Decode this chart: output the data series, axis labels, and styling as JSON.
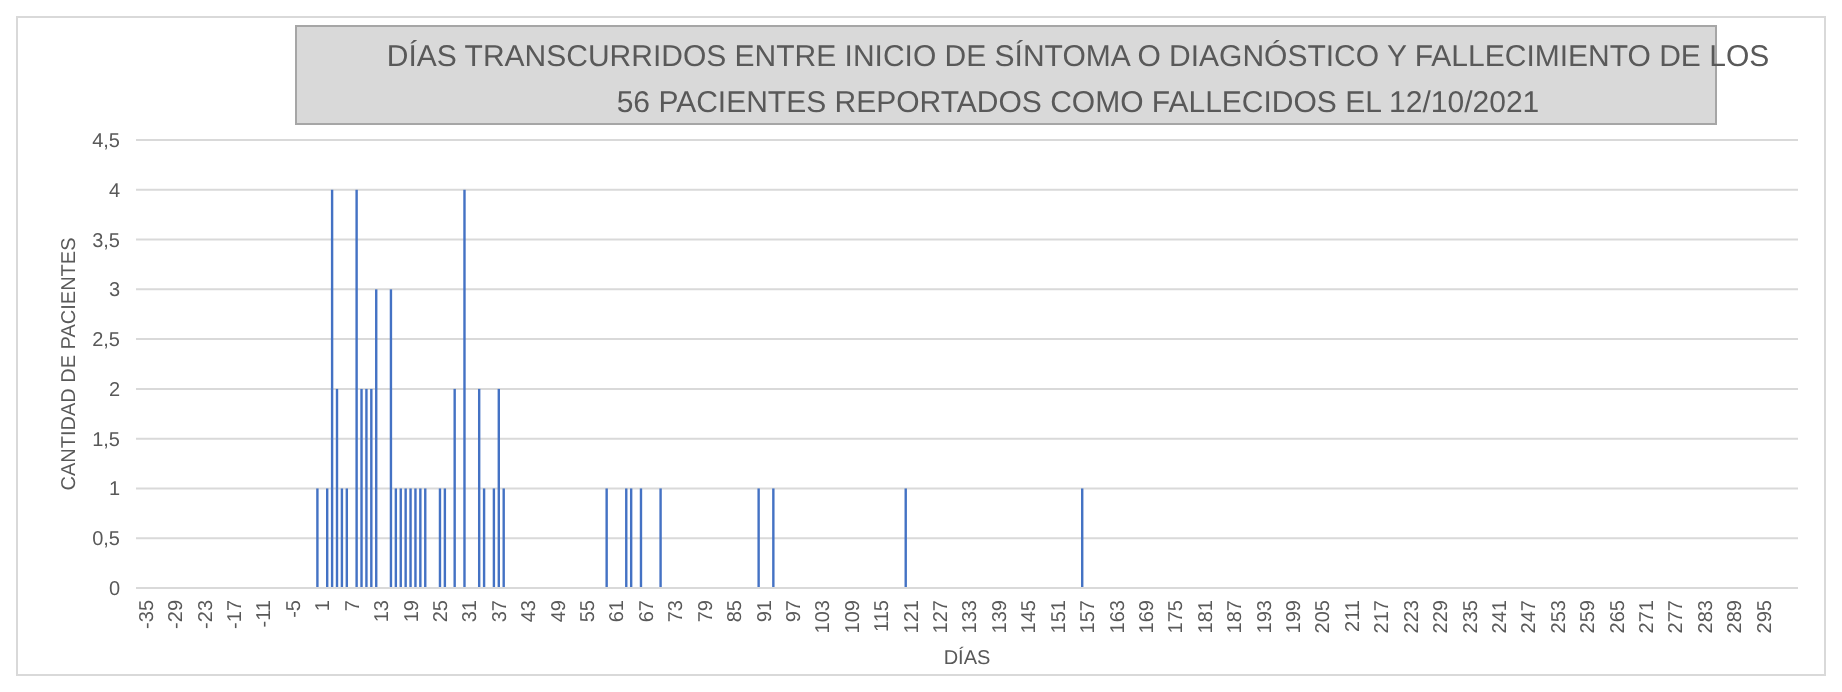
{
  "chart_data": {
    "type": "bar",
    "title": "DÍAS TRANSCURRIDOS ENTRE INICIO DE SÍNTOMA O DIAGNÓSTICO Y FALLECIMIENTO DE LOS",
    "subtitle": "56 PACIENTES REPORTADOS COMO FALLECIDOS EL 12/10/2021",
    "xlabel": "DÍAS",
    "ylabel": "CANTIDAD  DE PACIENTES",
    "color": "#4472c4",
    "x": [
      0,
      2,
      3,
      4,
      5,
      6,
      8,
      9,
      10,
      11,
      12,
      15,
      16,
      17,
      18,
      19,
      20,
      21,
      22,
      25,
      26,
      28,
      30,
      33,
      34,
      36,
      37,
      38,
      59,
      63,
      64,
      66,
      70,
      90,
      93,
      120,
      156
    ],
    "values": [
      1,
      1,
      4,
      2,
      1,
      1,
      4,
      2,
      2,
      2,
      3,
      3,
      1,
      1,
      1,
      1,
      1,
      1,
      1,
      1,
      1,
      2,
      4,
      2,
      1,
      1,
      2,
      1,
      1,
      1,
      1,
      1,
      1,
      1,
      1,
      1,
      1
    ],
    "xlim": [
      -37,
      302
    ],
    "xticks": [
      -35,
      -29,
      -23,
      -17,
      -11,
      -5,
      1,
      7,
      13,
      19,
      25,
      31,
      37,
      43,
      49,
      55,
      61,
      67,
      73,
      79,
      85,
      91,
      97,
      103,
      109,
      115,
      121,
      127,
      133,
      139,
      145,
      151,
      157,
      163,
      169,
      175,
      181,
      187,
      193,
      199,
      205,
      211,
      217,
      223,
      229,
      235,
      241,
      247,
      253,
      259,
      265,
      271,
      277,
      283,
      289,
      295
    ],
    "ylim": [
      0,
      4.5
    ],
    "yticks": [
      0,
      {
        "value": 0.5,
        "label": "0,5"
      },
      1,
      {
        "value": 1.5,
        "label": "1,5"
      },
      2,
      {
        "value": 2.5,
        "label": "2,5"
      },
      3,
      {
        "value": 3.5,
        "label": "3,5"
      },
      4,
      {
        "value": 4.5,
        "label": "4,5"
      }
    ],
    "grid": "y"
  }
}
